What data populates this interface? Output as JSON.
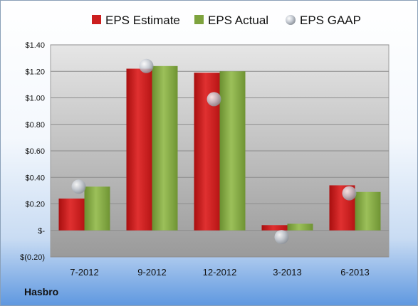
{
  "company": "Hasbro",
  "chart_data": {
    "type": "bar",
    "categories": [
      "7-2012",
      "9-2012",
      "12-2012",
      "3-2013",
      "6-2013"
    ],
    "series": [
      {
        "name": "EPS Estimate",
        "type": "bar",
        "color": "#cc1f1f",
        "values": [
          0.24,
          1.22,
          1.19,
          0.04,
          0.34
        ]
      },
      {
        "name": "EPS Actual",
        "type": "bar",
        "color": "#7ea33e",
        "values": [
          0.33,
          1.24,
          1.2,
          0.05,
          0.29
        ]
      },
      {
        "name": "EPS GAAP",
        "type": "scatter",
        "color": "#c8cdd4",
        "values": [
          0.33,
          1.24,
          0.99,
          -0.05,
          0.28
        ]
      }
    ],
    "yticks": [
      {
        "value": 1.4,
        "label": "$1.40"
      },
      {
        "value": 1.2,
        "label": "$1.20"
      },
      {
        "value": 1.0,
        "label": "$1.00"
      },
      {
        "value": 0.8,
        "label": "$0.80"
      },
      {
        "value": 0.6,
        "label": "$0.60"
      },
      {
        "value": 0.4,
        "label": "$0.40"
      },
      {
        "value": 0.2,
        "label": "$0.20"
      },
      {
        "value": 0,
        "label": "$-"
      },
      {
        "value": -0.2,
        "label": "$(0.20)"
      }
    ],
    "ylim": [
      -0.2,
      1.4
    ],
    "grid": true,
    "legend_position": "top"
  }
}
